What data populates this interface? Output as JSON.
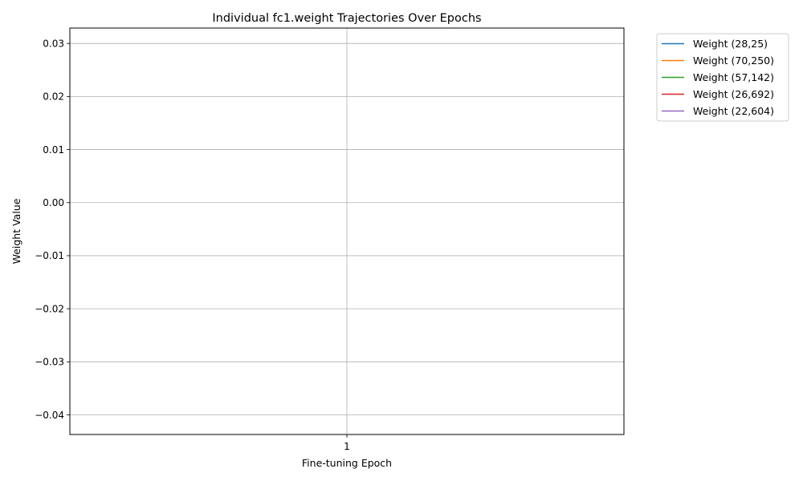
{
  "chart_data": {
    "type": "line",
    "title": "Individual fc1.weight Trajectories Over Epochs",
    "xlabel": "Fine-tuning Epoch",
    "ylabel": "Weight Value",
    "x_ticks": [
      1
    ],
    "y_ticks": [
      0.03,
      0.02,
      0.01,
      0.0,
      -0.01,
      -0.02,
      -0.03,
      -0.04
    ],
    "y_tick_labels": [
      "0.03",
      "0.02",
      "0.01",
      "0.00",
      "−0.01",
      "−0.02",
      "−0.03",
      "−0.04"
    ],
    "xlim": [
      0.95,
      1.05
    ],
    "ylim": [
      -0.0437,
      0.0329
    ],
    "grid": true,
    "legend_position": "outside-top-right",
    "series": [
      {
        "name": "Weight (28,25)",
        "color": "#1f77b4",
        "x": [
          1
        ],
        "y": [
          null
        ]
      },
      {
        "name": "Weight (70,250)",
        "color": "#ff7f0e",
        "x": [
          1
        ],
        "y": [
          null
        ]
      },
      {
        "name": "Weight (57,142)",
        "color": "#2ca02c",
        "x": [
          1
        ],
        "y": [
          null
        ]
      },
      {
        "name": "Weight (26,692)",
        "color": "#d62728",
        "x": [
          1
        ],
        "y": [
          null
        ]
      },
      {
        "name": "Weight (22,604)",
        "color": "#9467bd",
        "x": [
          1
        ],
        "y": [
          null
        ]
      }
    ]
  }
}
